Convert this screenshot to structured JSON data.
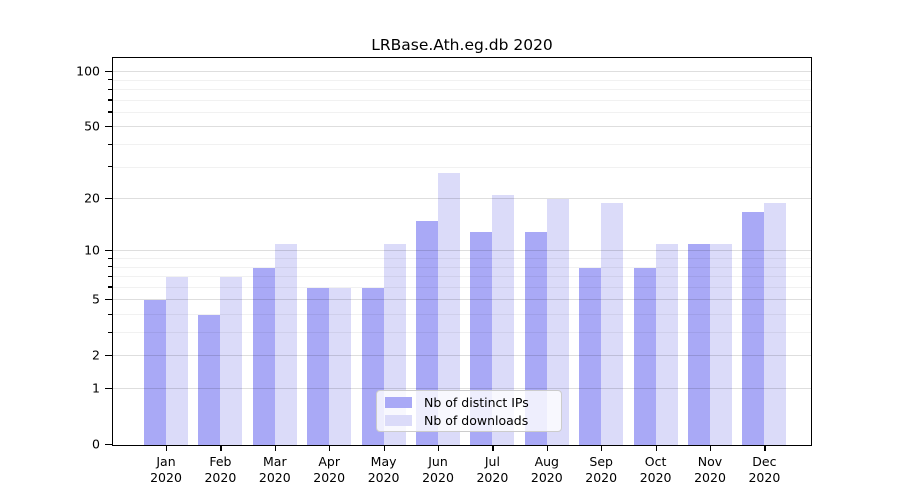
{
  "chart_data": {
    "type": "bar",
    "title": "LRBase.Ath.eg.db 2020",
    "categories": [
      "Jan",
      "Feb",
      "Mar",
      "Apr",
      "May",
      "Jun",
      "Jul",
      "Aug",
      "Sep",
      "Oct",
      "Nov",
      "Dec"
    ],
    "year_label": "2020",
    "series": [
      {
        "name": "Nb of distinct IPs",
        "color": "#a9a9f6",
        "values": [
          5,
          4,
          8,
          6,
          6,
          15,
          13,
          13,
          8,
          8,
          11,
          17
        ]
      },
      {
        "name": "Nb of downloads",
        "color": "#dbdbf9",
        "values": [
          7,
          7,
          11,
          6,
          11,
          28,
          21,
          20,
          19,
          11,
          11,
          19
        ]
      }
    ],
    "yscale": "log1p",
    "ylim": [
      0,
      118
    ],
    "yticks": [
      100,
      50,
      20,
      10,
      5,
      2,
      1,
      0
    ],
    "minor_yticks": [
      90,
      80,
      70,
      60,
      40,
      30,
      9,
      8,
      7,
      6,
      4,
      3
    ],
    "grid": true,
    "legend_position": "lower center",
    "axis_color": "#000000",
    "background_color": "#ffffff"
  }
}
